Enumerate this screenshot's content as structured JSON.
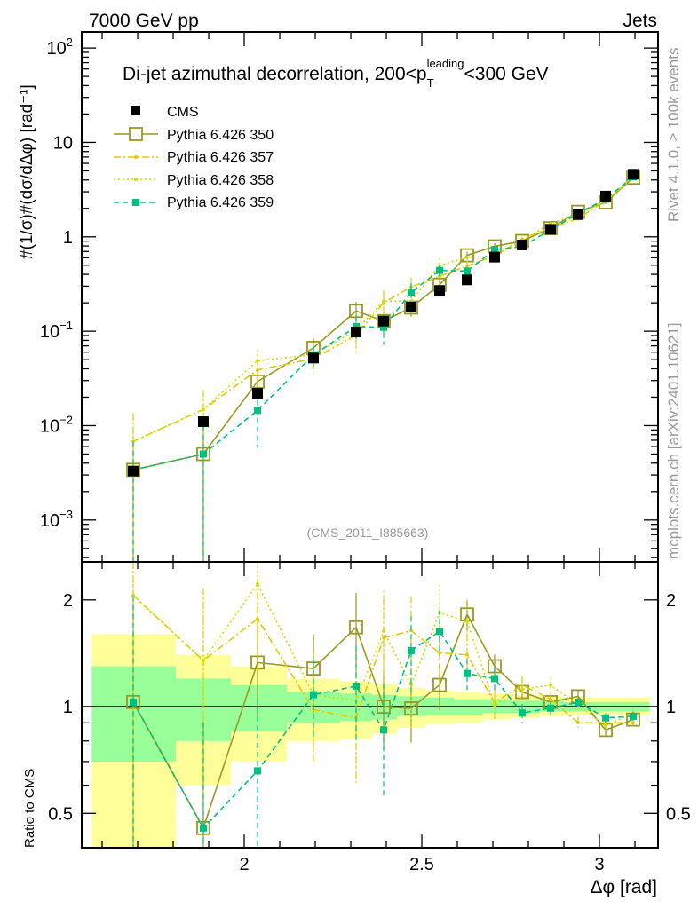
{
  "header": {
    "left": "7000 GeV pp",
    "right": "Jets"
  },
  "side": {
    "rivet": "Rivet 4.1.0, ≥ 100k events",
    "mcplots": "mcplots.cern.ch [arXiv:2401.10621]"
  },
  "chart_data": {
    "type": "line",
    "title": {
      "main": "Di-jet azimuthal decorrelation, 200<p",
      "sub": "T",
      "sup": "leading",
      "tail": "<300 GeV"
    },
    "ylabel": "#(1/σ)#(dσ/dΔφ) [rad⁻¹]",
    "xlabel": "Δφ [rad]",
    "ratio_ylabel": "Ratio to CMS",
    "analysis_tag": "(CMS_2011_I885663)",
    "xlim": [
      1.5425,
      3.165
    ],
    "ylim": [
      0.00036,
      148
    ],
    "yscale": "log",
    "ratio_ylim": [
      0.4,
      2.56
    ],
    "x_ticks": [
      {
        "v": 2,
        "label": "2"
      },
      {
        "v": 2.5,
        "label": "2.5"
      },
      {
        "v": 3,
        "label": "3"
      }
    ],
    "y_ticks": [
      {
        "v": 100,
        "label": "10",
        "exp": "2"
      },
      {
        "v": 10,
        "label": "10",
        "exp": ""
      },
      {
        "v": 1,
        "label": "1",
        "exp": ""
      },
      {
        "v": 0.1,
        "label": "10",
        "exp": "−1"
      },
      {
        "v": 0.01,
        "label": "10",
        "exp": "−2"
      },
      {
        "v": 0.001,
        "label": "10",
        "exp": "−3"
      }
    ],
    "ratio_ticks": [
      {
        "v": 2,
        "label": "2"
      },
      {
        "v": 1,
        "label": "1"
      },
      {
        "v": 0.5,
        "label": "0.5"
      }
    ],
    "bin_edges": [
      1.5708,
      1.8075,
      1.9625,
      2.12,
      2.27,
      2.36,
      2.43,
      2.51,
      2.59,
      2.67,
      2.75,
      2.83,
      2.9,
      2.98,
      3.06,
      3.1416
    ],
    "x": [
      1.6875,
      1.885,
      2.0375,
      2.195,
      2.315,
      2.3925,
      2.47,
      2.55,
      2.6275,
      2.705,
      2.7825,
      2.8625,
      2.94,
      3.0175,
      3.095
    ],
    "data": {
      "name": "CMS",
      "color": "#000000",
      "values": [
        0.0033,
        0.011,
        0.022,
        0.052,
        0.098,
        0.128,
        0.18,
        0.27,
        0.35,
        0.61,
        0.82,
        1.2,
        1.72,
        2.7,
        4.6
      ],
      "stat_band": [
        [
          0.7,
          1.3
        ],
        [
          0.8,
          1.2
        ],
        [
          0.85,
          1.15
        ],
        [
          0.9,
          1.1
        ],
        [
          0.91,
          1.09
        ],
        [
          0.92,
          1.08
        ],
        [
          0.94,
          1.07
        ],
        [
          0.95,
          1.06
        ],
        [
          0.95,
          1.05
        ],
        [
          0.96,
          1.05
        ],
        [
          0.96,
          1.04
        ],
        [
          0.97,
          1.04
        ],
        [
          0.97,
          1.03
        ],
        [
          0.97,
          1.03
        ],
        [
          0.97,
          1.03
        ]
      ],
      "total_band": [
        [
          0.3,
          1.6
        ],
        [
          0.6,
          1.4
        ],
        [
          0.7,
          1.3
        ],
        [
          0.8,
          1.2
        ],
        [
          0.81,
          1.18
        ],
        [
          0.84,
          1.16
        ],
        [
          0.87,
          1.13
        ],
        [
          0.89,
          1.11
        ],
        [
          0.9,
          1.1
        ],
        [
          0.92,
          1.09
        ],
        [
          0.93,
          1.08
        ],
        [
          0.94,
          1.07
        ],
        [
          0.95,
          1.06
        ],
        [
          0.95,
          1.06
        ],
        [
          0.95,
          1.06
        ]
      ],
      "stat_color": "#99ff99",
      "total_color": "#ffff99"
    },
    "series": [
      {
        "name": "Pythia 6.426 350",
        "color": "#999922",
        "style": "solid",
        "marker": "open-square",
        "values": [
          0.0034,
          0.005,
          0.0293,
          0.0666,
          0.164,
          0.128,
          0.178,
          0.311,
          0.637,
          0.793,
          0.902,
          1.236,
          1.84,
          2.32,
          4.23
        ],
        "rel_err": [
          0.9,
          0.99,
          0.3,
          0.25,
          0.25,
          0.25,
          0.2,
          0.15,
          0.1,
          0.08,
          0.05,
          0.04,
          0.04,
          0.04,
          0.03
        ]
      },
      {
        "name": "Pythia 6.426 357",
        "color": "#e5c800",
        "style": "dashdot",
        "marker": "dot",
        "values": [
          0.0068,
          0.01485,
          0.0389,
          0.051,
          0.091,
          0.2,
          0.295,
          0.383,
          0.49,
          0.628,
          0.943,
          1.26,
          1.55,
          2.43,
          4.14
        ],
        "rel_err": [
          0.99,
          0.6,
          0.3,
          0.3,
          0.35,
          0.3,
          0.25,
          0.2,
          0.15,
          0.1,
          0.06,
          0.05,
          0.04,
          0.04,
          0.03
        ]
      },
      {
        "name": "Pythia 6.426 358",
        "color": "#ccdd00",
        "style": "dotted",
        "marker": "dot",
        "values": [
          0.0068,
          0.01485,
          0.0488,
          0.0562,
          0.102,
          0.209,
          0.207,
          0.497,
          0.609,
          0.616,
          0.918,
          1.38,
          1.74,
          2.38,
          4.42
        ],
        "rel_err": [
          0.99,
          0.6,
          0.3,
          0.3,
          0.35,
          0.3,
          0.25,
          0.2,
          0.15,
          0.1,
          0.06,
          0.05,
          0.04,
          0.04,
          0.03
        ]
      },
      {
        "name": "Pythia 6.426 359",
        "color": "#00c080",
        "style": "dashed",
        "marker": "filled-square",
        "values": [
          0.0034,
          0.005,
          0.0145,
          0.0562,
          0.112,
          0.11,
          0.259,
          0.44,
          0.434,
          0.732,
          0.787,
          1.188,
          1.77,
          2.51,
          4.32
        ],
        "rel_err": [
          0.99,
          0.99,
          0.6,
          0.25,
          0.3,
          0.35,
          0.25,
          0.15,
          0.1,
          0.08,
          0.06,
          0.04,
          0.03,
          0.03,
          0.03
        ]
      }
    ],
    "legend_position": "top-left"
  }
}
